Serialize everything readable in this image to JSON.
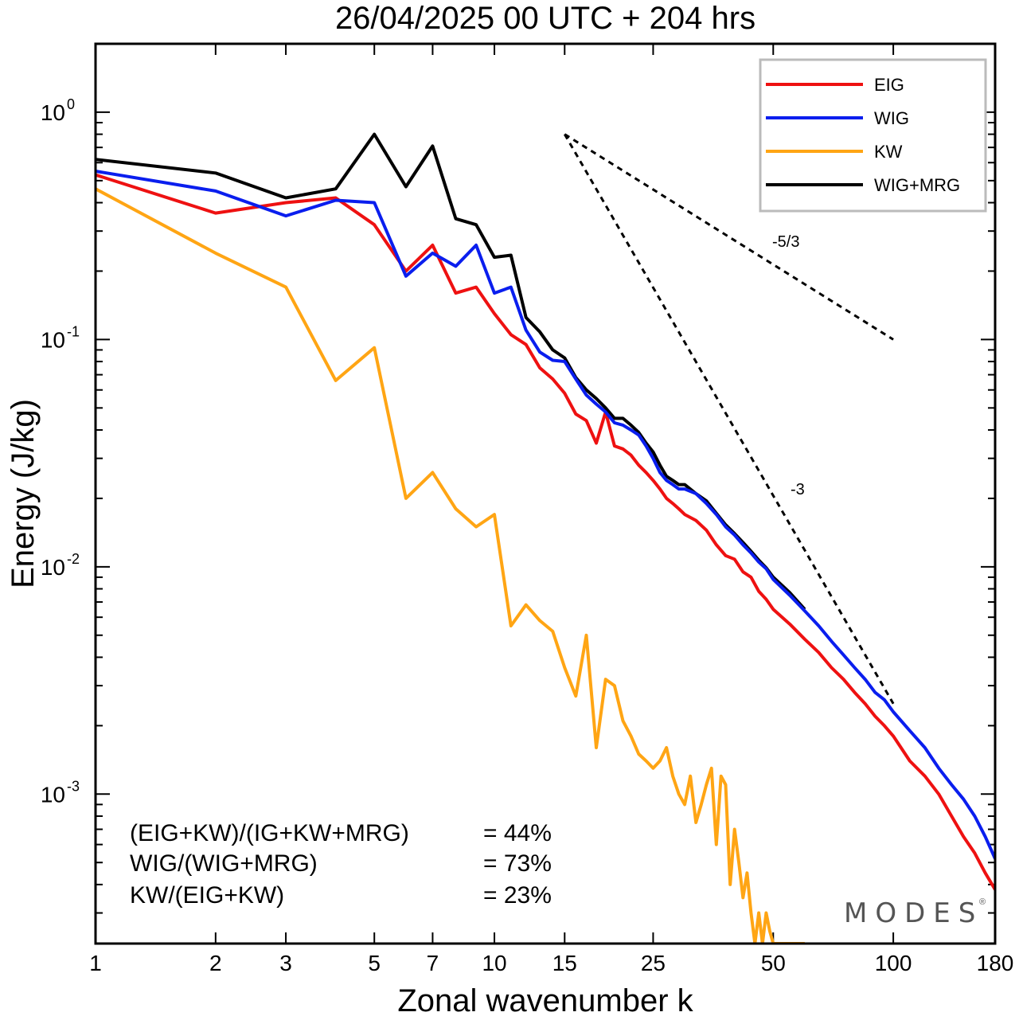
{
  "chart_data": {
    "type": "line",
    "title": "26/04/2025  00 UTC  + 204 hrs",
    "xlabel": "Zonal wavenumber k",
    "ylabel": "Energy (J/kg)",
    "xscale": "log",
    "yscale": "log",
    "xlim": [
      1,
      180
    ],
    "ylim": [
      0.00022,
      2.0
    ],
    "xticks": [
      1,
      2,
      3,
      5,
      7,
      10,
      15,
      25,
      50,
      100,
      180
    ],
    "xtick_labels": [
      "1",
      "2",
      "3",
      "5",
      "7",
      "10",
      "15",
      "25",
      "50",
      "100",
      "180"
    ],
    "yticks": [
      {
        "value": 1,
        "base": "10",
        "exp": "0"
      },
      {
        "value": 0.1,
        "base": "10",
        "exp": "-1"
      },
      {
        "value": 0.01,
        "base": "10",
        "exp": "-2"
      },
      {
        "value": 0.001,
        "base": "10",
        "exp": "-3"
      }
    ],
    "grid": false,
    "legend_position": "top-right",
    "colors": {
      "EIG": "#ee1111",
      "WIG": "#0a1eee",
      "KW": "#ffa514",
      "WIG+MRG": "#000000"
    },
    "series": [
      {
        "name": "EIG",
        "color": "#ee1111",
        "points": [
          [
            1,
            0.53
          ],
          [
            2,
            0.36
          ],
          [
            3,
            0.4
          ],
          [
            4,
            0.42
          ],
          [
            5,
            0.32
          ],
          [
            6,
            0.2
          ],
          [
            7,
            0.26
          ],
          [
            8,
            0.16
          ],
          [
            9,
            0.17
          ],
          [
            10,
            0.13
          ],
          [
            11,
            0.105
          ],
          [
            12,
            0.095
          ],
          [
            13,
            0.075
          ],
          [
            14,
            0.067
          ],
          [
            15,
            0.058
          ],
          [
            16,
            0.047
          ],
          [
            17,
            0.044
          ],
          [
            18,
            0.035
          ],
          [
            19,
            0.048
          ],
          [
            20,
            0.034
          ],
          [
            21,
            0.033
          ],
          [
            22,
            0.031
          ],
          [
            23,
            0.028
          ],
          [
            24,
            0.026
          ],
          [
            25,
            0.024
          ],
          [
            26,
            0.022
          ],
          [
            27,
            0.02
          ],
          [
            28,
            0.019
          ],
          [
            29,
            0.018
          ],
          [
            30,
            0.017
          ],
          [
            32,
            0.016
          ],
          [
            34,
            0.0145
          ],
          [
            36,
            0.0125
          ],
          [
            38,
            0.0112
          ],
          [
            40,
            0.0108
          ],
          [
            42,
            0.0095
          ],
          [
            44,
            0.009
          ],
          [
            46,
            0.0078
          ],
          [
            48,
            0.0072
          ],
          [
            50,
            0.0065
          ],
          [
            55,
            0.0056
          ],
          [
            60,
            0.0048
          ],
          [
            65,
            0.0042
          ],
          [
            70,
            0.0036
          ],
          [
            75,
            0.0032
          ],
          [
            80,
            0.0028
          ],
          [
            85,
            0.0025
          ],
          [
            90,
            0.0022
          ],
          [
            95,
            0.002
          ],
          [
            100,
            0.0018
          ],
          [
            110,
            0.0014
          ],
          [
            120,
            0.0012
          ],
          [
            130,
            0.001
          ],
          [
            140,
            0.0008
          ],
          [
            150,
            0.00065
          ],
          [
            160,
            0.00055
          ],
          [
            170,
            0.00045
          ],
          [
            180,
            0.00038
          ]
        ]
      },
      {
        "name": "WIG",
        "color": "#0a1eee",
        "points": [
          [
            1,
            0.55
          ],
          [
            2,
            0.45
          ],
          [
            3,
            0.35
          ],
          [
            4,
            0.41
          ],
          [
            5,
            0.4
          ],
          [
            6,
            0.19
          ],
          [
            7,
            0.24
          ],
          [
            8,
            0.21
          ],
          [
            9,
            0.26
          ],
          [
            10,
            0.16
          ],
          [
            11,
            0.17
          ],
          [
            12,
            0.11
          ],
          [
            13,
            0.088
          ],
          [
            14,
            0.081
          ],
          [
            15,
            0.08
          ],
          [
            16,
            0.067
          ],
          [
            17,
            0.057
          ],
          [
            18,
            0.052
          ],
          [
            19,
            0.048
          ],
          [
            20,
            0.043
          ],
          [
            21,
            0.042
          ],
          [
            22,
            0.04
          ],
          [
            23,
            0.038
          ],
          [
            24,
            0.034
          ],
          [
            25,
            0.03
          ],
          [
            26,
            0.026
          ],
          [
            27,
            0.024
          ],
          [
            28,
            0.023
          ],
          [
            29,
            0.022
          ],
          [
            30,
            0.022
          ],
          [
            32,
            0.021
          ],
          [
            34,
            0.019
          ],
          [
            36,
            0.017
          ],
          [
            38,
            0.015
          ],
          [
            40,
            0.0138
          ],
          [
            42,
            0.0125
          ],
          [
            44,
            0.0115
          ],
          [
            46,
            0.0105
          ],
          [
            48,
            0.0098
          ],
          [
            50,
            0.0088
          ],
          [
            55,
            0.0075
          ],
          [
            60,
            0.0064
          ],
          [
            65,
            0.0055
          ],
          [
            70,
            0.0047
          ],
          [
            75,
            0.0041
          ],
          [
            80,
            0.0036
          ],
          [
            85,
            0.0032
          ],
          [
            90,
            0.0028
          ],
          [
            95,
            0.0026
          ],
          [
            100,
            0.0023
          ],
          [
            110,
            0.0019
          ],
          [
            120,
            0.0016
          ],
          [
            130,
            0.0013
          ],
          [
            140,
            0.0011
          ],
          [
            150,
            0.00095
          ],
          [
            160,
            0.0008
          ],
          [
            170,
            0.00065
          ],
          [
            180,
            0.00052
          ]
        ]
      },
      {
        "name": "KW",
        "color": "#ffa514",
        "points": [
          [
            1,
            0.46
          ],
          [
            2,
            0.24
          ],
          [
            3,
            0.17
          ],
          [
            4,
            0.066
          ],
          [
            5,
            0.092
          ],
          [
            6,
            0.02
          ],
          [
            7,
            0.026
          ],
          [
            8,
            0.018
          ],
          [
            9,
            0.015
          ],
          [
            10,
            0.017
          ],
          [
            11,
            0.0055
          ],
          [
            12,
            0.0068
          ],
          [
            13,
            0.0058
          ],
          [
            14,
            0.0052
          ],
          [
            15,
            0.0036
          ],
          [
            16,
            0.0027
          ],
          [
            17,
            0.005
          ],
          [
            18,
            0.0016
          ],
          [
            19,
            0.0032
          ],
          [
            20,
            0.003
          ],
          [
            21,
            0.0021
          ],
          [
            22,
            0.0018
          ],
          [
            23,
            0.0015
          ],
          [
            24,
            0.0014
          ],
          [
            25,
            0.0013
          ],
          [
            26,
            0.0014
          ],
          [
            27,
            0.0016
          ],
          [
            28,
            0.0012
          ],
          [
            29,
            0.001
          ],
          [
            30,
            0.0009
          ],
          [
            31,
            0.0012
          ],
          [
            32,
            0.00075
          ],
          [
            33,
            0.0009
          ],
          [
            34,
            0.0011
          ],
          [
            35,
            0.0013
          ],
          [
            36,
            0.0006
          ],
          [
            37,
            0.0012
          ],
          [
            38,
            0.0011
          ],
          [
            39,
            0.0004
          ],
          [
            40,
            0.0007
          ],
          [
            41,
            0.0005
          ],
          [
            42,
            0.00035
          ],
          [
            43,
            0.00045
          ],
          [
            44,
            0.0003
          ],
          [
            45,
            0.00022
          ],
          [
            46,
            0.0003
          ],
          [
            47,
            0.00022
          ],
          [
            48,
            0.0003
          ],
          [
            49,
            0.00025
          ],
          [
            50,
            0.00022
          ],
          [
            55,
            0.00022
          ],
          [
            60,
            0.00022
          ]
        ]
      },
      {
        "name": "WIG+MRG",
        "color": "#000000",
        "points": [
          [
            1,
            0.62
          ],
          [
            2,
            0.54
          ],
          [
            3,
            0.42
          ],
          [
            4,
            0.46
          ],
          [
            5,
            0.8
          ],
          [
            6,
            0.47
          ],
          [
            7,
            0.71
          ],
          [
            8,
            0.34
          ],
          [
            9,
            0.32
          ],
          [
            10,
            0.23
          ],
          [
            11,
            0.235
          ],
          [
            12,
            0.125
          ],
          [
            13,
            0.108
          ],
          [
            14,
            0.09
          ],
          [
            15,
            0.083
          ],
          [
            16,
            0.068
          ],
          [
            17,
            0.06
          ],
          [
            18,
            0.055
          ],
          [
            19,
            0.05
          ],
          [
            20,
            0.045
          ],
          [
            21,
            0.045
          ],
          [
            22,
            0.042
          ],
          [
            23,
            0.039
          ],
          [
            24,
            0.035
          ],
          [
            25,
            0.032
          ],
          [
            26,
            0.028
          ],
          [
            27,
            0.025
          ],
          [
            28,
            0.024
          ],
          [
            29,
            0.023
          ],
          [
            30,
            0.023
          ],
          [
            32,
            0.021
          ],
          [
            34,
            0.0195
          ],
          [
            36,
            0.0172
          ],
          [
            38,
            0.0153
          ],
          [
            40,
            0.014
          ],
          [
            42,
            0.0128
          ],
          [
            44,
            0.0117
          ],
          [
            46,
            0.0107
          ],
          [
            48,
            0.0099
          ],
          [
            50,
            0.009
          ],
          [
            55,
            0.0077
          ],
          [
            60,
            0.0065
          ]
        ]
      }
    ],
    "reference_lines": [
      {
        "label": "-5/3",
        "slope": -1.6667,
        "from": [
          15,
          0.8
        ],
        "to": [
          100,
          0.1
        ]
      },
      {
        "label": "-3",
        "slope": -3,
        "from": [
          15,
          0.8
        ],
        "to": [
          100,
          0.0025
        ]
      }
    ],
    "annotations": [
      {
        "text": "(EIG+KW)/(IG+KW+MRG)",
        "value": "= 44%"
      },
      {
        "text": "WIG/(WIG+MRG)",
        "value": "= 73%"
      },
      {
        "text": "KW/(EIG+KW)",
        "value": "= 23%"
      }
    ]
  },
  "watermark": {
    "text": "MODES",
    "mark": "®"
  }
}
